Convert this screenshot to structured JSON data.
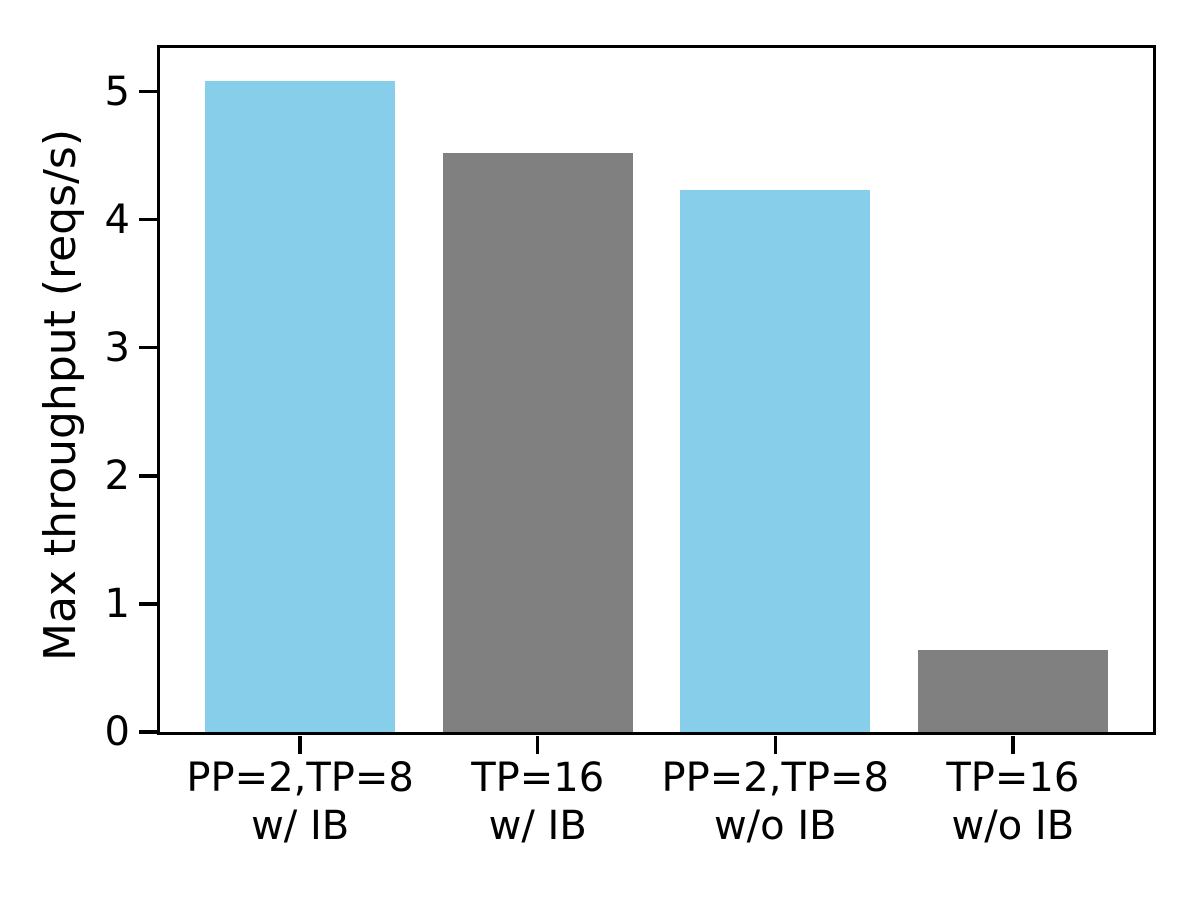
{
  "chart_data": {
    "type": "bar",
    "title": "",
    "xlabel": "",
    "ylabel": "Max throughput (reqs/s)",
    "categories": [
      [
        "PP=2,TP=8",
        "w/ IB"
      ],
      [
        "TP=16",
        "w/ IB"
      ],
      [
        "PP=2,TP=8",
        "w/o IB"
      ],
      [
        "TP=16",
        "w/o IB"
      ]
    ],
    "values": [
      5.08,
      4.52,
      4.23,
      0.64
    ],
    "bar_colors": [
      "#87CEEB",
      "#808080",
      "#87CEEB",
      "#808080"
    ],
    "yticks": [
      0,
      1,
      2,
      3,
      4,
      5
    ],
    "ylim": [
      0,
      5.34
    ],
    "xlim": [
      -0.59,
      3.59
    ],
    "bar_width": 0.8,
    "grid": false,
    "legend": null,
    "axis_color": "#000000",
    "background_color": "#ffffff"
  }
}
